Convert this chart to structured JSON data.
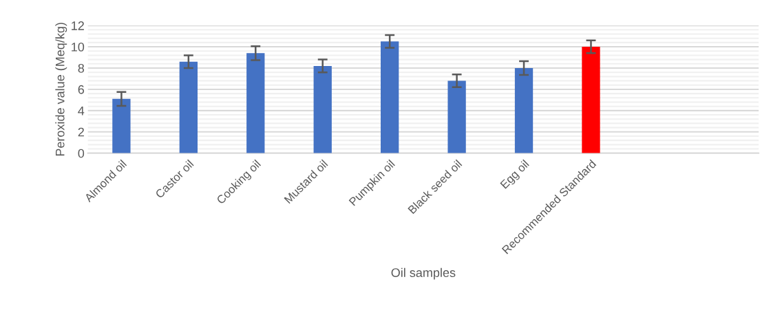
{
  "chart_data": {
    "type": "bar",
    "xlabel": "Oil samples",
    "ylabel": "Peroxide value (Meq/kg)",
    "categories": [
      "Almond oil",
      "Castor oil",
      "Cooking oil",
      "Mustard oil",
      "Pumpkin oil",
      "Black seed oil",
      "Egg oil",
      "Recommended Standard",
      null,
      null
    ],
    "values": [
      5.1,
      8.6,
      9.4,
      8.2,
      10.5,
      6.8,
      8.0,
      10.0,
      null,
      null
    ],
    "colors": [
      "#4472c4",
      "#4472c4",
      "#4472c4",
      "#4472c4",
      "#4472c4",
      "#4472c4",
      "#4472c4",
      "#ff0000",
      null,
      null
    ],
    "errors": [
      0.65,
      0.6,
      0.65,
      0.6,
      0.6,
      0.6,
      0.65,
      0.6,
      null,
      null
    ],
    "ylim": [
      0,
      12
    ],
    "yticks": [
      0,
      2,
      4,
      6,
      8,
      10,
      12
    ],
    "grid": "y",
    "legend": false
  }
}
